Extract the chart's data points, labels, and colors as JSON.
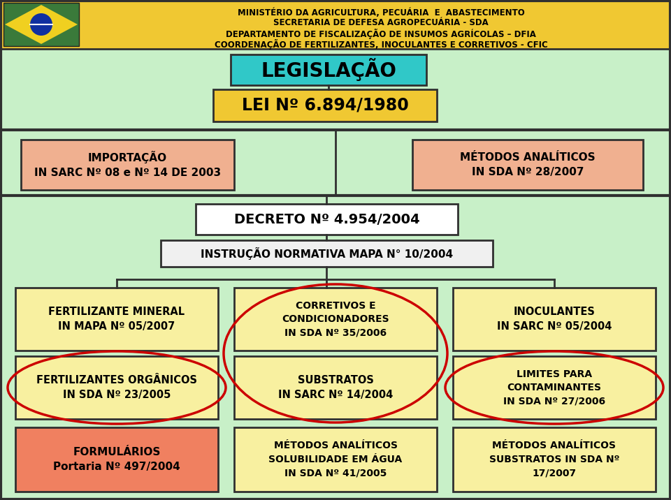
{
  "bg_color": "#c8f0c8",
  "header_bg": "#f0c832",
  "header_lines": [
    "MINISTÉRIO DA AGRICULTURA, PECUÁRIA  E  ABASTECIMENTO",
    "SECRETARIA DE DEFESA AGROPECUÁRIA - SDA",
    "DEPARTAMENTO DE FISCALIZAÇÃO DE INSUMOS AGRÍCOLAS – DFIA",
    "COORDENAÇÃO DE FERTILIZANTES, INOCULANTES E CORRETIVOS - CFIC"
  ],
  "legislacao_bg": "#30c8c8",
  "legislacao_text": "LEGISLAÇÃO",
  "lei_bg": "#f0c832",
  "lei_text": "LEI Nº 6.894/1980",
  "importacao_bg": "#f0b090",
  "importacao_lines": [
    "IMPORTAÇÃO",
    "IN SARC Nº 08 e Nº 14 DE 2003"
  ],
  "metodos_analiticos_lines": [
    "MÉTODOS ANALÍTICOS",
    "IN SDA Nº 28/2007"
  ],
  "decreto_text": "DECRETO Nº 4.954/2004",
  "instrucao_text": "INSTRUÇÃO NORMATIVA MAPA N° 10/2004",
  "box_bg_yellow": "#f8f0a0",
  "line_color": "#303030",
  "cells": [
    {
      "lines": [
        "FERTILIZANTE MINERAL",
        "IN MAPA Nº 05/2007"
      ],
      "col": 0,
      "row": 0
    },
    {
      "lines": [
        "CORRETIVOS E",
        "CONDICIONADORES",
        "IN SDA Nº 35/2006"
      ],
      "col": 1,
      "row": 0
    },
    {
      "lines": [
        "INOCULANTES",
        "IN SARC Nº 05/2004"
      ],
      "col": 2,
      "row": 0
    },
    {
      "lines": [
        "FERTILIZANTES ORGÂNICOS",
        "IN SDA Nº 23/2005"
      ],
      "col": 0,
      "row": 1
    },
    {
      "lines": [
        "SUBSTRATOS",
        "IN SARC Nº 14/2004"
      ],
      "col": 1,
      "row": 1
    },
    {
      "lines": [
        "LIMITES PARA",
        "CONTAMINANTES",
        "IN SDA Nº 27/2006"
      ],
      "col": 2,
      "row": 1
    }
  ],
  "formularios_bg": "#f08060",
  "formularios_lines": [
    "FORMULÁRIOS",
    "Portaria Nº 497/2004"
  ],
  "metodos_sol_lines": [
    "MÉTODOS ANALÍTICOS",
    "SOLUBILIDADE EM ÁGUA",
    "IN SDA Nº 41/2005"
  ],
  "metodos_sub_lines": [
    "MÉTODOS ANALÍTICOS",
    "SUBSTRATOS IN SDA Nº",
    "17/2007"
  ],
  "ellipse_color": "#cc0000",
  "flag_green": "#3a7a3a",
  "flag_yellow": "#f0d020",
  "flag_blue": "#1030a0"
}
